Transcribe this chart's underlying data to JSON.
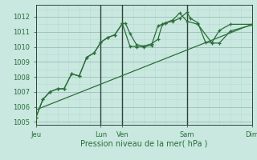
{
  "background_color": "#c8e8e0",
  "grid_color_major": "#9bbfb5",
  "grid_color_minor": "#b8d8d0",
  "line_color": "#2d6e3a",
  "dark_line_color": "#334433",
  "xlabel": "Pression niveau de la mer( hPa )",
  "ylim": [
    1004.8,
    1012.8
  ],
  "yticks": [
    1005,
    1006,
    1007,
    1008,
    1009,
    1010,
    1011,
    1012
  ],
  "day_labels": [
    "Jeu",
    "Lun",
    "Ven",
    "Sam",
    "Dim"
  ],
  "day_x": [
    0.0,
    3.0,
    4.0,
    7.0,
    10.0
  ],
  "vlines": [
    3.0,
    4.0,
    7.0
  ],
  "xlim": [
    0,
    10
  ],
  "series1_x": [
    0.0,
    0.32,
    0.65,
    1.0,
    1.3,
    1.65,
    2.0,
    2.35,
    2.7,
    3.0,
    3.3,
    3.65,
    4.0,
    4.15,
    4.35,
    4.65,
    5.0,
    5.35,
    5.65,
    5.85,
    6.0,
    6.35,
    6.65,
    7.0,
    7.15,
    7.5,
    7.85,
    8.15,
    8.5,
    9.0,
    10.0
  ],
  "series1_y": [
    1005.3,
    1006.5,
    1007.0,
    1007.2,
    1007.2,
    1008.2,
    1008.05,
    1009.3,
    1009.6,
    1010.3,
    1010.6,
    1010.8,
    1011.55,
    1011.55,
    1010.9,
    1010.15,
    1010.05,
    1010.2,
    1010.5,
    1011.5,
    1011.6,
    1011.7,
    1011.9,
    1012.3,
    1011.9,
    1011.6,
    1010.3,
    1010.3,
    1011.1,
    1011.5,
    1011.5
  ],
  "series2_x": [
    0.0,
    0.32,
    0.65,
    1.0,
    1.3,
    1.65,
    2.0,
    2.35,
    2.7,
    3.0,
    3.3,
    3.65,
    4.0,
    4.35,
    4.65,
    5.0,
    5.35,
    5.65,
    5.85,
    6.0,
    6.35,
    6.65,
    7.0,
    7.5,
    8.15,
    8.5,
    9.0,
    10.0
  ],
  "series2_y": [
    1005.3,
    1006.5,
    1007.0,
    1007.2,
    1007.2,
    1008.2,
    1008.05,
    1009.3,
    1009.6,
    1010.3,
    1010.6,
    1010.8,
    1011.55,
    1010.05,
    1010.0,
    1010.0,
    1010.1,
    1011.4,
    1011.5,
    1011.6,
    1011.8,
    1012.25,
    1011.7,
    1011.5,
    1010.25,
    1010.25,
    1011.05,
    1011.45
  ],
  "trend_x": [
    0.0,
    10.0
  ],
  "trend_y": [
    1005.8,
    1011.5
  ]
}
